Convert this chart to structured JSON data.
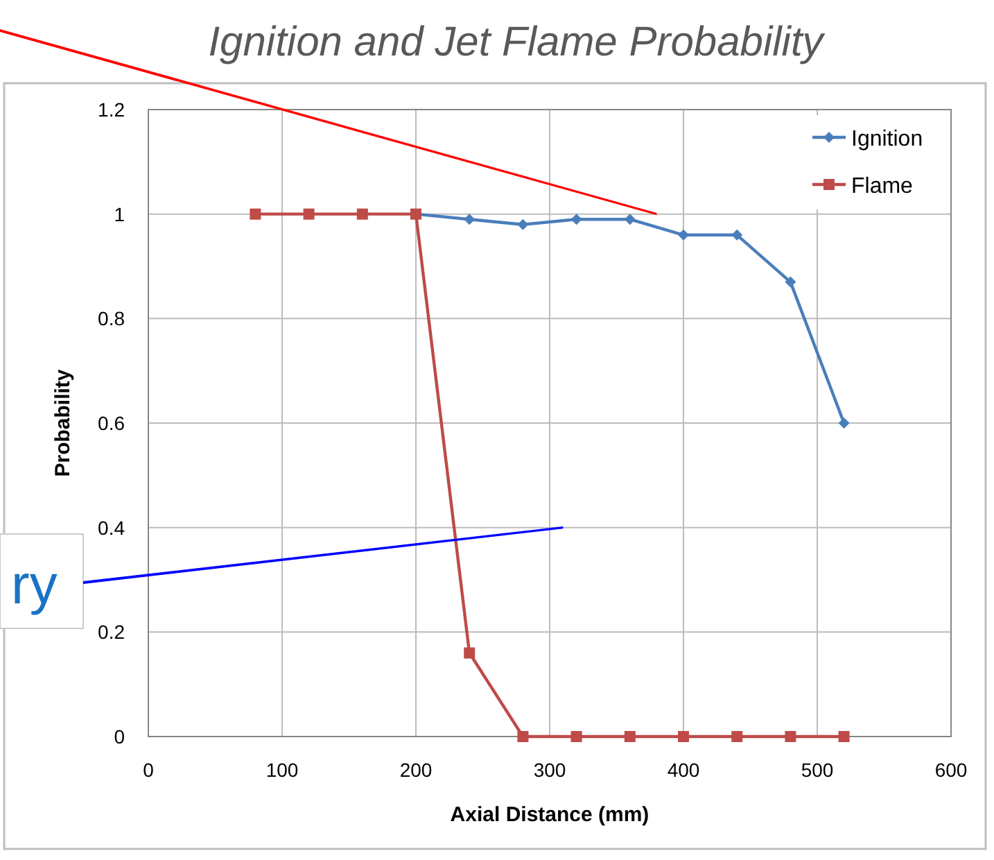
{
  "chart_data": {
    "type": "line",
    "title": "Ignition and Jet Flame Probability",
    "xlabel": "Axial Distance (mm)",
    "ylabel": "Probability",
    "xlim": [
      0,
      600
    ],
    "xticks": [
      0,
      100,
      200,
      300,
      400,
      500,
      600
    ],
    "ylim": [
      0,
      1.2
    ],
    "yticks": [
      0,
      0.2,
      0.4,
      0.6,
      0.8,
      1,
      1.2
    ],
    "grid": true,
    "legend": "top right",
    "series": [
      {
        "name": "Ignition",
        "color": "#4a7ebb",
        "marker": "diamond",
        "x": [
          200,
          240,
          280,
          320,
          360,
          400,
          440,
          480,
          520
        ],
        "values": [
          1,
          0.99,
          0.98,
          0.99,
          0.99,
          0.96,
          0.96,
          0.87,
          0.6
        ]
      },
      {
        "name": "Flame",
        "color": "#be4b48",
        "marker": "square",
        "x": [
          80,
          120,
          160,
          200,
          240,
          280,
          320,
          360,
          400,
          440,
          480,
          520
        ],
        "values": [
          1,
          1,
          1,
          1,
          0.16,
          0,
          0,
          0,
          0,
          0,
          0,
          0
        ]
      }
    ],
    "annotations": [
      "ry"
    ]
  }
}
